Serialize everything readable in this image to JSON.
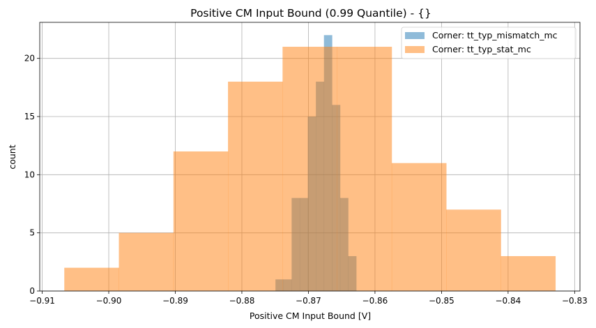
{
  "chart_data": {
    "type": "histogram",
    "title": "Positive CM Input Bound (0.99 Quantile) - {}",
    "xlabel": "Positive CM Input Bound [V]",
    "ylabel": "count",
    "xlim": [
      -0.91037,
      -0.8292
    ],
    "ylim": [
      0,
      23.1
    ],
    "grid": true,
    "legend_position": "top-right",
    "x_ticks": [
      -0.91,
      -0.9,
      -0.89,
      -0.88,
      -0.87,
      -0.86,
      -0.85,
      -0.84,
      -0.83
    ],
    "x_tick_labels": [
      "−0.91",
      "−0.90",
      "−0.89",
      "−0.88",
      "−0.87",
      "−0.86",
      "−0.85",
      "−0.84",
      "−0.83"
    ],
    "y_ticks": [
      0,
      5,
      10,
      15,
      20
    ],
    "y_tick_labels": [
      "0",
      "5",
      "10",
      "15",
      "20"
    ],
    "series": [
      {
        "name": "Corner: tt_typ_mismatch_mc",
        "color": "#1f77b4",
        "alpha": 0.5,
        "bin_range": [
          -0.87495,
          -0.86281
        ],
        "counts": [
          1,
          1,
          8,
          8,
          15,
          18,
          22,
          16,
          8,
          3
        ]
      },
      {
        "name": "Corner: tt_typ_stat_mc",
        "color": "#ff7f0e",
        "alpha": 0.5,
        "bin_range": [
          -0.90668,
          -0.83289
        ],
        "counts": [
          2,
          5,
          12,
          18,
          21,
          21,
          11,
          7,
          3
        ]
      }
    ]
  }
}
